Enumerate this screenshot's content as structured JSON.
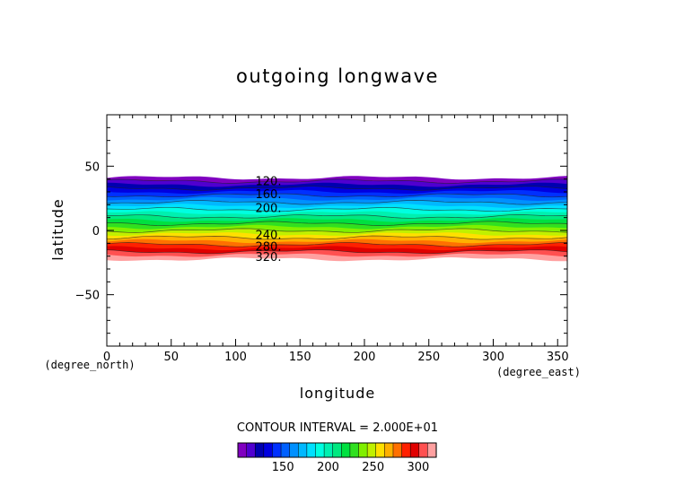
{
  "chart_data": {
    "type": "contour",
    "title": "outgoing longwave",
    "xlabel": "longitude",
    "ylabel": "latitude",
    "x_unit": "(degree_east)",
    "y_unit": "(degree_north)",
    "xlim": [
      0,
      357.5
    ],
    "ylim": [
      -90,
      90
    ],
    "x_ticks": [
      0,
      50,
      100,
      150,
      200,
      250,
      300,
      350
    ],
    "y_ticks": [
      -50,
      0,
      50
    ],
    "y_tick_labels": [
      "−50",
      "0",
      "50"
    ],
    "data_lat_range": [
      -22,
      41
    ],
    "contour_interval_text": "CONTOUR INTERVAL = 2.000E+01",
    "contour_labels": [
      {
        "value": "120.",
        "lat": 38
      },
      {
        "value": "160.",
        "lat": 28
      },
      {
        "value": "200.",
        "lat": 17
      },
      {
        "value": "240.",
        "lat": -4
      },
      {
        "value": "280.",
        "lat": -13
      },
      {
        "value": "320.",
        "lat": -21
      }
    ],
    "colorbar": {
      "min": 100,
      "max": 320,
      "ticks": [
        150,
        200,
        250,
        300
      ],
      "colors": [
        "#8000c0",
        "#5000d0",
        "#0000b0",
        "#0000e0",
        "#0030ff",
        "#0060ff",
        "#0090ff",
        "#00b8ff",
        "#00e0ff",
        "#00ffe0",
        "#00f0b0",
        "#00e880",
        "#00e040",
        "#30e020",
        "#80f000",
        "#c0f000",
        "#ffe000",
        "#ffb000",
        "#ff7000",
        "#ff2000",
        "#e00000",
        "#ff5050",
        "#ffa0a0"
      ]
    }
  }
}
